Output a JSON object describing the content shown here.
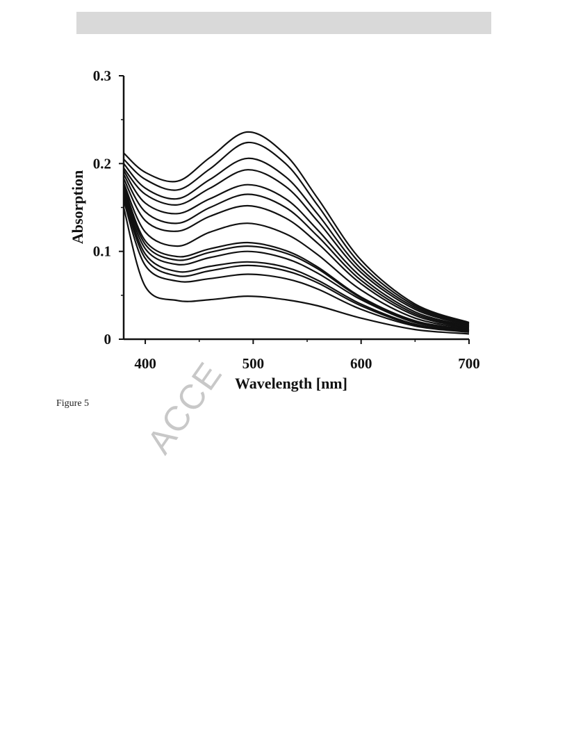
{
  "header": {
    "bar_color": "#d9d9d9"
  },
  "caption": {
    "text": "Figure 5"
  },
  "watermark": {
    "text": "ACCE"
  },
  "chart_data": {
    "type": "line",
    "title": "",
    "xlabel": "Wavelength [nm]",
    "ylabel": "Absorption",
    "xlim": [
      380,
      700
    ],
    "ylim": [
      0,
      0.3
    ],
    "x_ticks": [
      400,
      500,
      600,
      700
    ],
    "y_ticks": [
      0,
      0.1,
      0.2,
      0.3
    ],
    "x_tick_labels": [
      "400",
      "500",
      "600",
      "700"
    ],
    "y_tick_labels": [
      "0",
      "0.1",
      "0.2",
      "0.3"
    ],
    "grid": false,
    "legend": "none",
    "line_color": "#111111",
    "x": [
      380,
      400,
      430,
      460,
      495,
      530,
      560,
      600,
      650,
      700
    ],
    "series": [
      {
        "values": [
          0.212,
          0.19,
          0.18,
          0.207,
          0.236,
          0.21,
          0.16,
          0.09,
          0.04,
          0.019
        ]
      },
      {
        "values": [
          0.205,
          0.182,
          0.17,
          0.194,
          0.224,
          0.2,
          0.152,
          0.085,
          0.038,
          0.018
        ]
      },
      {
        "values": [
          0.2,
          0.172,
          0.16,
          0.182,
          0.206,
          0.185,
          0.142,
          0.08,
          0.036,
          0.017
        ]
      },
      {
        "values": [
          0.195,
          0.165,
          0.153,
          0.172,
          0.193,
          0.174,
          0.134,
          0.076,
          0.034,
          0.016
        ]
      },
      {
        "values": [
          0.192,
          0.155,
          0.143,
          0.16,
          0.176,
          0.16,
          0.124,
          0.071,
          0.031,
          0.015
        ]
      },
      {
        "values": [
          0.188,
          0.145,
          0.132,
          0.15,
          0.165,
          0.15,
          0.117,
          0.067,
          0.029,
          0.014
        ]
      },
      {
        "values": [
          0.183,
          0.135,
          0.123,
          0.14,
          0.152,
          0.138,
          0.109,
          0.063,
          0.027,
          0.013
        ]
      },
      {
        "values": [
          0.178,
          0.122,
          0.106,
          0.122,
          0.132,
          0.12,
          0.096,
          0.056,
          0.024,
          0.012
        ]
      },
      {
        "values": [
          0.175,
          0.112,
          0.094,
          0.103,
          0.11,
          0.101,
          0.082,
          0.048,
          0.021,
          0.011
        ]
      },
      {
        "values": [
          0.172,
          0.108,
          0.09,
          0.099,
          0.106,
          0.098,
          0.08,
          0.047,
          0.02,
          0.01
        ]
      },
      {
        "values": [
          0.168,
          0.103,
          0.085,
          0.093,
          0.1,
          0.092,
          0.075,
          0.045,
          0.019,
          0.01
        ]
      },
      {
        "values": [
          0.165,
          0.097,
          0.077,
          0.083,
          0.088,
          0.082,
          0.067,
          0.04,
          0.017,
          0.009
        ]
      },
      {
        "values": [
          0.162,
          0.092,
          0.072,
          0.078,
          0.084,
          0.078,
          0.064,
          0.038,
          0.016,
          0.009
        ]
      },
      {
        "values": [
          0.158,
          0.084,
          0.066,
          0.069,
          0.074,
          0.069,
          0.057,
          0.034,
          0.015,
          0.008
        ]
      },
      {
        "values": [
          0.15,
          0.06,
          0.044,
          0.045,
          0.049,
          0.045,
          0.038,
          0.024,
          0.011,
          0.006
        ]
      }
    ]
  }
}
